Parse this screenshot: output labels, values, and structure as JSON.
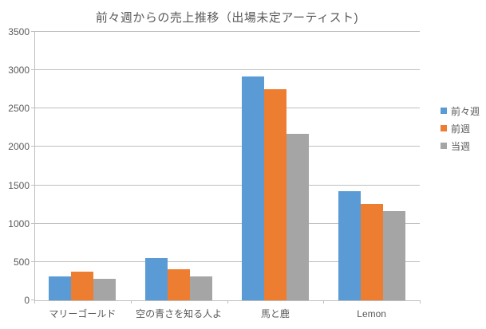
{
  "chart_data": {
    "type": "bar",
    "title": "前々週からの売上推移（出場未定アーティスト)",
    "categories": [
      "マリーゴールド",
      "空の青さを知る人よ",
      "馬と鹿",
      "Lemon"
    ],
    "series": [
      {
        "name": "前々週",
        "color": "#5B9BD5",
        "values": [
          310,
          555,
          2920,
          1420
        ]
      },
      {
        "name": "前週",
        "color": "#ED7D31",
        "values": [
          370,
          405,
          2750,
          1260
        ]
      },
      {
        "name": "当週",
        "color": "#A5A5A5",
        "values": [
          285,
          310,
          2170,
          1160
        ]
      }
    ],
    "xlabel": "",
    "ylabel": "",
    "ylim": [
      0,
      3500
    ],
    "yticks": [
      0,
      500,
      1000,
      1500,
      2000,
      2500,
      3000,
      3500
    ],
    "grid": true,
    "legend_position": "right",
    "colors": {
      "grid": "#BFBFBF",
      "axis": "#BFBFBF",
      "text": "#595959",
      "title": "#595959",
      "background": "#FFFFFF"
    }
  }
}
